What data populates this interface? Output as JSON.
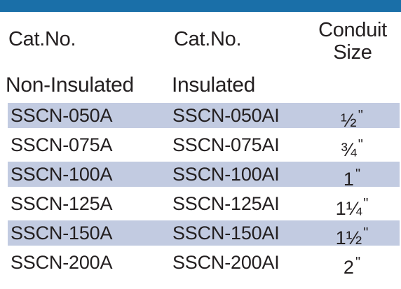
{
  "header": {
    "col1": "Cat.No.",
    "col2": "Cat.No.",
    "col3_line1": "Conduit",
    "col3_line2": "Size"
  },
  "subheader": {
    "col1": "Non-Insulated",
    "col2": "Insulated"
  },
  "rows": [
    {
      "non_insulated": "SSCN-050A",
      "insulated": "SSCN-050AI",
      "size": "½",
      "mark": "\""
    },
    {
      "non_insulated": "SSCN-075A",
      "insulated": "SSCN-075AI",
      "size": "¾",
      "mark": "\""
    },
    {
      "non_insulated": "SSCN-100A",
      "insulated": "SSCN-100AI",
      "size": "1",
      "mark": "\""
    },
    {
      "non_insulated": "SSCN-125A",
      "insulated": "SSCN-125AI",
      "size": "1¼",
      "mark": "\""
    },
    {
      "non_insulated": "SSCN-150A",
      "insulated": "SSCN-150AI",
      "size": "1½",
      "mark": "\""
    },
    {
      "non_insulated": "SSCN-200A",
      "insulated": "SSCN-200AI",
      "size": "2",
      "mark": "\""
    }
  ],
  "colors": {
    "top_bar": "#1a6fa8",
    "row_shade": "#c2cbe1",
    "text": "#231f20"
  }
}
